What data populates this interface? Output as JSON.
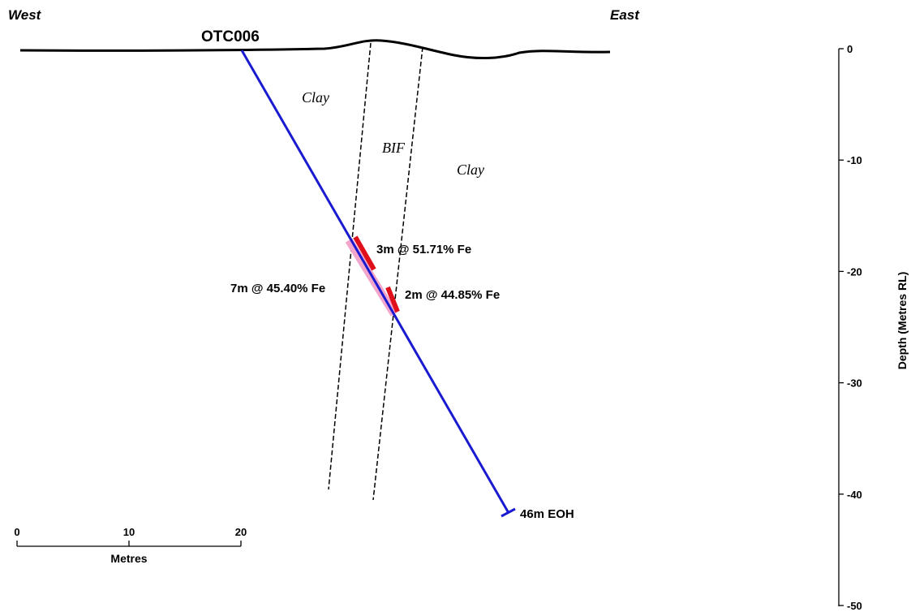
{
  "directions": {
    "west": "West",
    "east": "East"
  },
  "hole_id": "OTC006",
  "lithology": {
    "clay_west": "Clay",
    "bif": "BIF",
    "clay_east": "Clay"
  },
  "intercepts": [
    {
      "label": "3m @ 51.71% Fe",
      "color": "#e0101a"
    },
    {
      "label": "7m @ 45.40% Fe",
      "color": "#f3a6cc"
    },
    {
      "label": "2m @ 44.85% Fe",
      "color": "#e0101a"
    }
  ],
  "end_of_hole": "46m EOH",
  "scale_bar": {
    "ticks": [
      "0",
      "10",
      "20"
    ],
    "unit": "Metres"
  },
  "depth_axis": {
    "title": "Depth (Metres RL)",
    "ticks": [
      "0",
      "-10",
      "-20",
      "-30",
      "-40",
      "-50"
    ]
  },
  "colors": {
    "drill_trace": "#1a1ad0",
    "surface": "#000000"
  }
}
